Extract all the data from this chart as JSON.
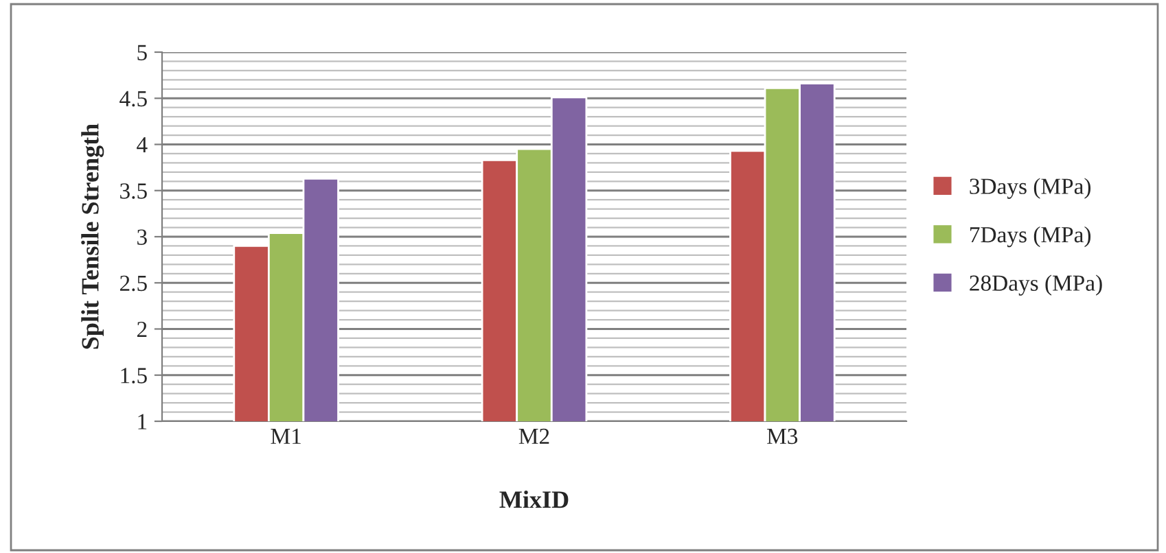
{
  "chart_data": {
    "type": "bar",
    "xlabel": "MixID",
    "ylabel": "Split Tensile Strength",
    "categories": [
      "M1",
      "M2",
      "M3"
    ],
    "series": [
      {
        "name": "3Days (MPa)",
        "color": "#c0504d",
        "values": [
          2.9,
          3.83,
          3.93
        ]
      },
      {
        "name": "7Days (MPa)",
        "color": "#9bbb59",
        "values": [
          3.04,
          3.95,
          4.61
        ]
      },
      {
        "name": "28Days (MPa)",
        "color": "#8064a2",
        "values": [
          3.63,
          4.51,
          4.66
        ]
      }
    ],
    "ylim": [
      1,
      5
    ],
    "yticks": [
      1,
      1.5,
      2,
      2.5,
      3,
      3.5,
      4,
      4.5,
      5
    ],
    "grid": "y",
    "legend": "right"
  }
}
